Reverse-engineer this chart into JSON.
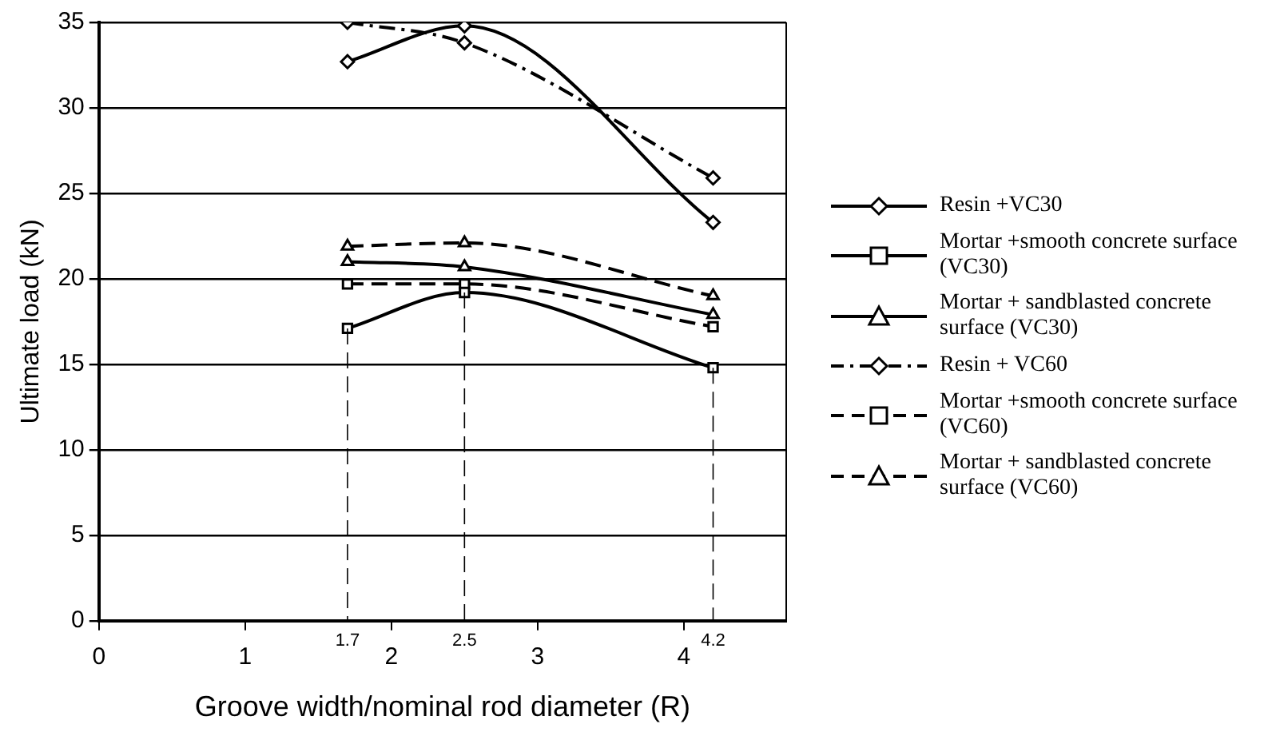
{
  "chart_data": {
    "type": "line",
    "xlabel": "Groove width/nominal rod diameter (R)",
    "ylabel": "Ultimate load (kN)",
    "x": [
      1.7,
      2.5,
      4.2
    ],
    "series": [
      {
        "name": "Resin +VC30",
        "color": "#000000",
        "marker": "diamond",
        "line_style": "solid",
        "values": [
          32.7,
          34.8,
          23.3
        ]
      },
      {
        "name": "Mortar +smooth concrete surface  (VC30)",
        "color": "#000000",
        "marker": "square",
        "line_style": "solid",
        "values": [
          17.1,
          19.2,
          14.8
        ]
      },
      {
        "name": "Mortar + sandblasted concrete surface (VC30)",
        "color": "#000000",
        "marker": "triangle",
        "line_style": "solid",
        "values": [
          21.0,
          20.7,
          17.9
        ]
      },
      {
        "name": "Resin + VC60",
        "color": "#000000",
        "marker": "diamond",
        "line_style": "dashdot",
        "values": [
          35.0,
          33.8,
          25.9
        ]
      },
      {
        "name": "Mortar +smooth concrete surface  (VC60)",
        "color": "#000000",
        "marker": "square",
        "line_style": "dashed",
        "values": [
          19.7,
          19.7,
          17.2
        ]
      },
      {
        "name": "Mortar + sandblasted concrete surface (VC60)",
        "color": "#000000",
        "marker": "triangle",
        "line_style": "dashed",
        "values": [
          21.9,
          22.1,
          19.0
        ]
      }
    ],
    "xlim": [
      0,
      4.7
    ],
    "xticks": [
      0,
      1,
      2,
      3,
      4
    ],
    "ylim": [
      0,
      35
    ],
    "yticks": [
      0,
      5,
      10,
      15,
      20,
      25,
      30,
      35
    ],
    "ref_lines": [
      {
        "axis": "x",
        "value": 1.7,
        "label": "1.7",
        "line_style": "dashed"
      },
      {
        "axis": "x",
        "value": 2.5,
        "label": "2.5",
        "line_style": "dashed"
      },
      {
        "axis": "x",
        "value": 4.2,
        "label": "4.2",
        "line_style": "dashed"
      }
    ],
    "grid": "y",
    "legend": "right"
  }
}
